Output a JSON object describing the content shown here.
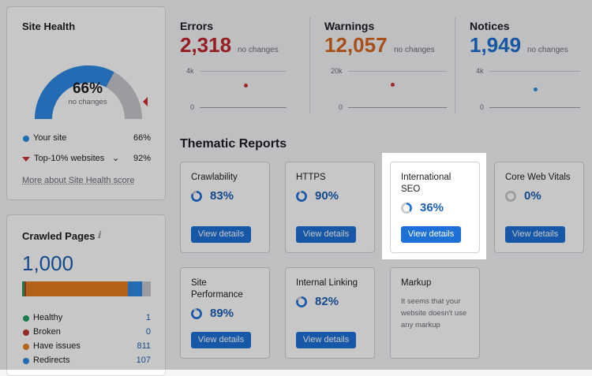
{
  "site_health": {
    "title": "Site Health",
    "score": "66%",
    "score_fraction": 0.66,
    "change": "no changes",
    "your_site_label": "Your site",
    "your_site_value": "66%",
    "top10_label": "Top-10% websites",
    "top10_value": "92%",
    "more_link": "More about Site Health score",
    "colors": {
      "your_site": "#2d8be6",
      "track": "#c7c8cd",
      "marker": "#d0312d"
    }
  },
  "crawled_pages": {
    "title": "Crawled Pages",
    "info_icon": "info-icon",
    "total": "1,000",
    "legend": [
      {
        "label": "Healthy",
        "value": "1",
        "color": "#21a060"
      },
      {
        "label": "Broken",
        "value": "0",
        "color": "#c0392b"
      },
      {
        "label": "Have issues",
        "value": "811",
        "color": "#e67e22"
      },
      {
        "label": "Redirects",
        "value": "107",
        "color": "#2d8be6"
      }
    ]
  },
  "metrics": [
    {
      "title": "Errors",
      "value": "2,318",
      "change": "no changes",
      "ymax": "4k",
      "ymin": "0",
      "color": "#d0312d"
    },
    {
      "title": "Warnings",
      "value": "12,057",
      "change": "no changes",
      "ymax": "20k",
      "ymin": "0",
      "color": "#e36a24"
    },
    {
      "title": "Notices",
      "value": "1,949",
      "change": "no changes",
      "ymax": "4k",
      "ymin": "0",
      "color": "#2d8be6"
    }
  ],
  "thematic": {
    "title": "Thematic Reports",
    "button_label": "View details",
    "reports": [
      {
        "name": "Crawlability",
        "pct": "83%",
        "fraction": 0.83
      },
      {
        "name": "HTTPS",
        "pct": "90%",
        "fraction": 0.9
      },
      {
        "name": "International SEO",
        "pct": "36%",
        "fraction": 0.36
      },
      {
        "name": "Core Web Vitals",
        "pct": "0%",
        "fraction": 0.0
      },
      {
        "name": "Site Performance",
        "pct": "89%",
        "fraction": 0.89
      },
      {
        "name": "Internal Linking",
        "pct": "82%",
        "fraction": 0.82
      },
      {
        "name": "Markup",
        "note": "It seems that your website doesn't use any markup"
      }
    ]
  }
}
